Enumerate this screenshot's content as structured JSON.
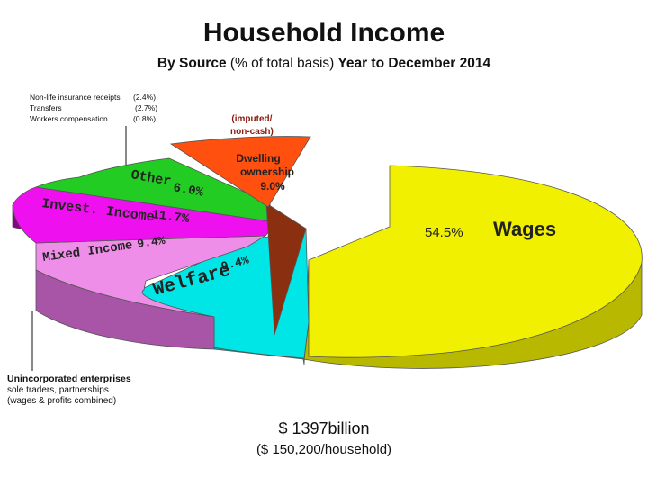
{
  "title": "Household Income",
  "subtitle_main": "By Source",
  "subtitle_pct": "(% of total basis)",
  "subtitle_rest": "Year to December 2014",
  "small_notes": [
    {
      "label": "Non-life insurance receipts",
      "value": "(2.4%)"
    },
    {
      "label": "Transfers",
      "value": "(2.7%)"
    },
    {
      "label": "Workers compensation",
      "value": "(0.8%),"
    }
  ],
  "imputed_note": [
    "(imputed/",
    "non-cash)"
  ],
  "unincorporated": {
    "title": "Unincorporated enterprises",
    "line1": "sole traders, partnerships",
    "line2": "(wages & profits combined)"
  },
  "total": {
    "main": "$ 1397billion",
    "sub": "($ 150,200/household)"
  },
  "chart_data": {
    "type": "pie",
    "title": "Household Income",
    "subtitle": "By Source (% of total basis) Year to December 2014",
    "slices": [
      {
        "label": "Wages",
        "value": 54.5,
        "value_label": "54.5%",
        "color": "#f0f000",
        "side": "#b8b800"
      },
      {
        "label": "Welfare",
        "value": 9.4,
        "value_label": "9.4%",
        "color": "#00e6e6",
        "side": "#00aaaa"
      },
      {
        "label": "Mixed Income",
        "value": 9.4,
        "value_label": "9.4%",
        "color": "#ee8ee8",
        "side": "#a855a8"
      },
      {
        "label": "Invest. Income",
        "value": 11.7,
        "value_label": "11.7%",
        "color": "#ee10ee",
        "side": "#8a008a"
      },
      {
        "label": "Other",
        "value": 6.0,
        "value_label": "6.0%",
        "color": "#22cc22",
        "side": "#138013"
      },
      {
        "label": "Dwelling ownership",
        "value": 9.0,
        "value_label": "9.0%",
        "color": "#ff5010",
        "side": "#8a3010"
      }
    ],
    "legend": "none"
  }
}
